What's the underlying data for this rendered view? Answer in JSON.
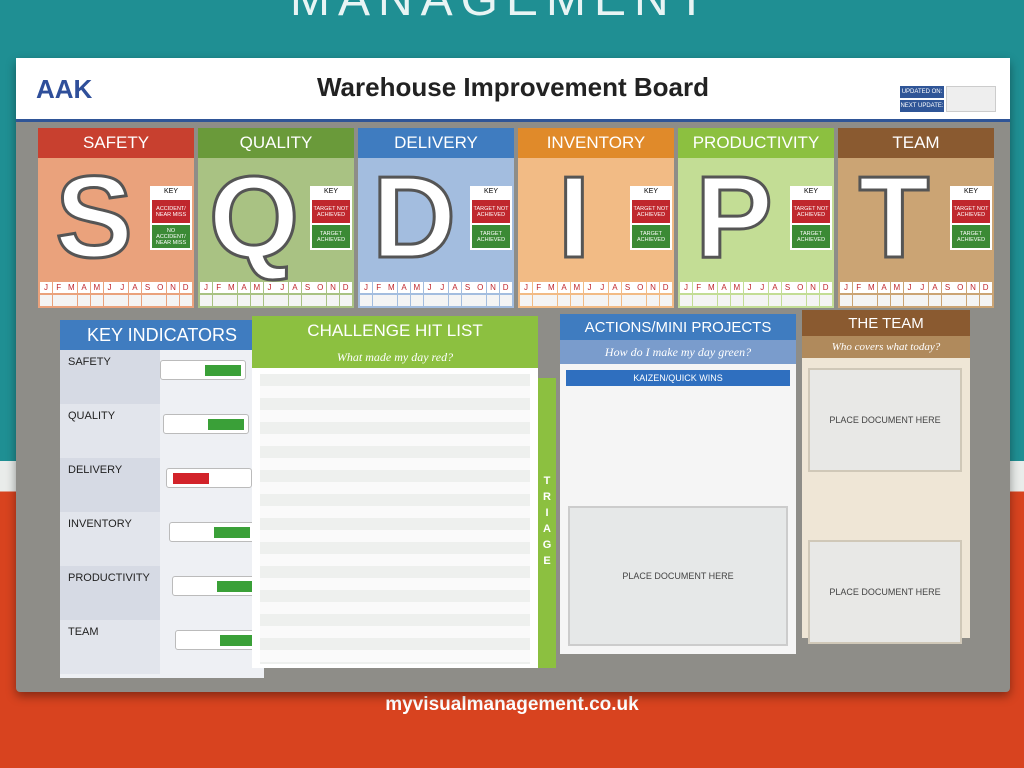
{
  "background": {
    "top_text": "MANAGEMENT",
    "bottom_text": "myvisualmanagement.co.uk"
  },
  "header": {
    "logo": "AAK",
    "title": "Warehouse Improvement Board",
    "updated_on": "UPDATED ON:",
    "next_update": "NEXT UPDATE:"
  },
  "letters": [
    {
      "title": "SAFETY",
      "letter": "S",
      "color": "#c8402f",
      "body": "#eaa27c",
      "key": "KEY",
      "key_items": [
        {
          "label": "ACCIDENT/ NEAR MISS",
          "color": "#c0272d"
        },
        {
          "label": "NO ACCIDENT/ NEAR MISS",
          "color": "#3b8a35"
        }
      ]
    },
    {
      "title": "QUALITY",
      "letter": "Q",
      "color": "#6a9a3a",
      "body": "#a9c283",
      "key": "KEY",
      "key_items": [
        {
          "label": "TARGET NOT ACHIEVED",
          "color": "#c0272d"
        },
        {
          "label": "TARGET ACHIEVED",
          "color": "#3b8a35"
        }
      ]
    },
    {
      "title": "DELIVERY",
      "letter": "D",
      "color": "#3f7cc0",
      "body": "#a3bddf",
      "key": "KEY",
      "key_items": [
        {
          "label": "TARGET NOT ACHIEVED",
          "color": "#c0272d"
        },
        {
          "label": "TARGET ACHIEVED",
          "color": "#3b8a35"
        }
      ]
    },
    {
      "title": "INVENTORY",
      "letter": "I",
      "color": "#e08a2a",
      "body": "#f2bb85",
      "key": "KEY",
      "key_items": [
        {
          "label": "TARGET NOT ACHIEVED",
          "color": "#c0272d"
        },
        {
          "label": "TARGET ACHIEVED",
          "color": "#3b8a35"
        }
      ]
    },
    {
      "title": "PRODUCTIVITY",
      "letter": "P",
      "color": "#8cc040",
      "body": "#c3dd95",
      "key": "KEY",
      "key_items": [
        {
          "label": "TARGET NOT ACHIEVED",
          "color": "#c0272d"
        },
        {
          "label": "TARGET ACHIEVED",
          "color": "#3b8a35"
        }
      ]
    },
    {
      "title": "TEAM",
      "letter": "T",
      "color": "#8a5a30",
      "body": "#cba474",
      "key": "KEY",
      "key_items": [
        {
          "label": "TARGET NOT ACHIEVED",
          "color": "#c0272d"
        },
        {
          "label": "TARGET ACHIEVED",
          "color": "#3b8a35"
        }
      ]
    }
  ],
  "months": [
    "J",
    "F",
    "M",
    "A",
    "M",
    "J",
    "J",
    "A",
    "S",
    "O",
    "N",
    "D"
  ],
  "key_indicators": {
    "title": "KEY INDICATORS",
    "rows": [
      {
        "label": "SAFETY",
        "status": "#3aa038"
      },
      {
        "label": "QUALITY",
        "status": "#3aa038"
      },
      {
        "label": "DELIVERY",
        "status": "#d2232a"
      },
      {
        "label": "INVENTORY",
        "status": "#3aa038"
      },
      {
        "label": "PRODUCTIVITY",
        "status": "#3aa038"
      },
      {
        "label": "TEAM",
        "status": "#3aa038"
      }
    ]
  },
  "challenge": {
    "title": "CHALLENGE HIT LIST",
    "subtitle": "What made my day red?",
    "side": "TRIAGE"
  },
  "actions": {
    "title": "ACTIONS/MINI PROJECTS",
    "subtitle": "How do I make my day green?",
    "kaizen": "KAIZEN/QUICK WINS",
    "doc": "PLACE DOCUMENT HERE"
  },
  "team": {
    "title": "THE TEAM",
    "subtitle": "Who covers what today?",
    "docs": [
      "PLACE DOCUMENT HERE",
      "PLACE DOCUMENT HERE"
    ]
  }
}
